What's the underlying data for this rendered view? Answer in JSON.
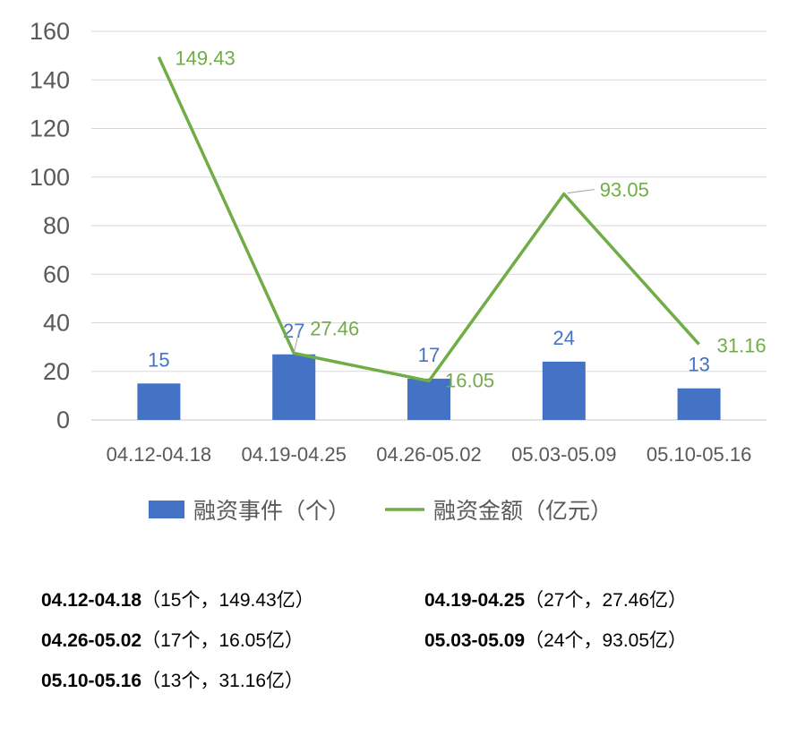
{
  "chart_data": {
    "type": "bar+line",
    "categories": [
      "04.12-04.18",
      "04.19-04.25",
      "04.26-05.02",
      "05.03-05.09",
      "05.10-05.16"
    ],
    "series": [
      {
        "name": "融资事件（个）",
        "type": "bar",
        "color": "#4472C4",
        "values": [
          15,
          27,
          17,
          24,
          13
        ]
      },
      {
        "name": "融资金额（亿元）",
        "type": "line",
        "color": "#70AD47",
        "values": [
          149.43,
          27.46,
          16.05,
          93.05,
          31.16
        ]
      }
    ],
    "ylim": [
      0,
      160
    ],
    "yticks": [
      0,
      20,
      40,
      60,
      80,
      100,
      120,
      140,
      160
    ],
    "grid": true,
    "legend": "bottom"
  },
  "summary": [
    {
      "period": "04.12-04.18",
      "detail": "（15个，149.43亿）"
    },
    {
      "period": "04.19-04.25",
      "detail": "（27个，27.46亿）"
    },
    {
      "period": "04.26-05.02",
      "detail": "（17个，16.05亿）"
    },
    {
      "period": "05.03-05.09",
      "detail": "（24个，93.05亿）"
    },
    {
      "period": "05.10-05.16",
      "detail": "（13个，31.16亿）"
    }
  ]
}
